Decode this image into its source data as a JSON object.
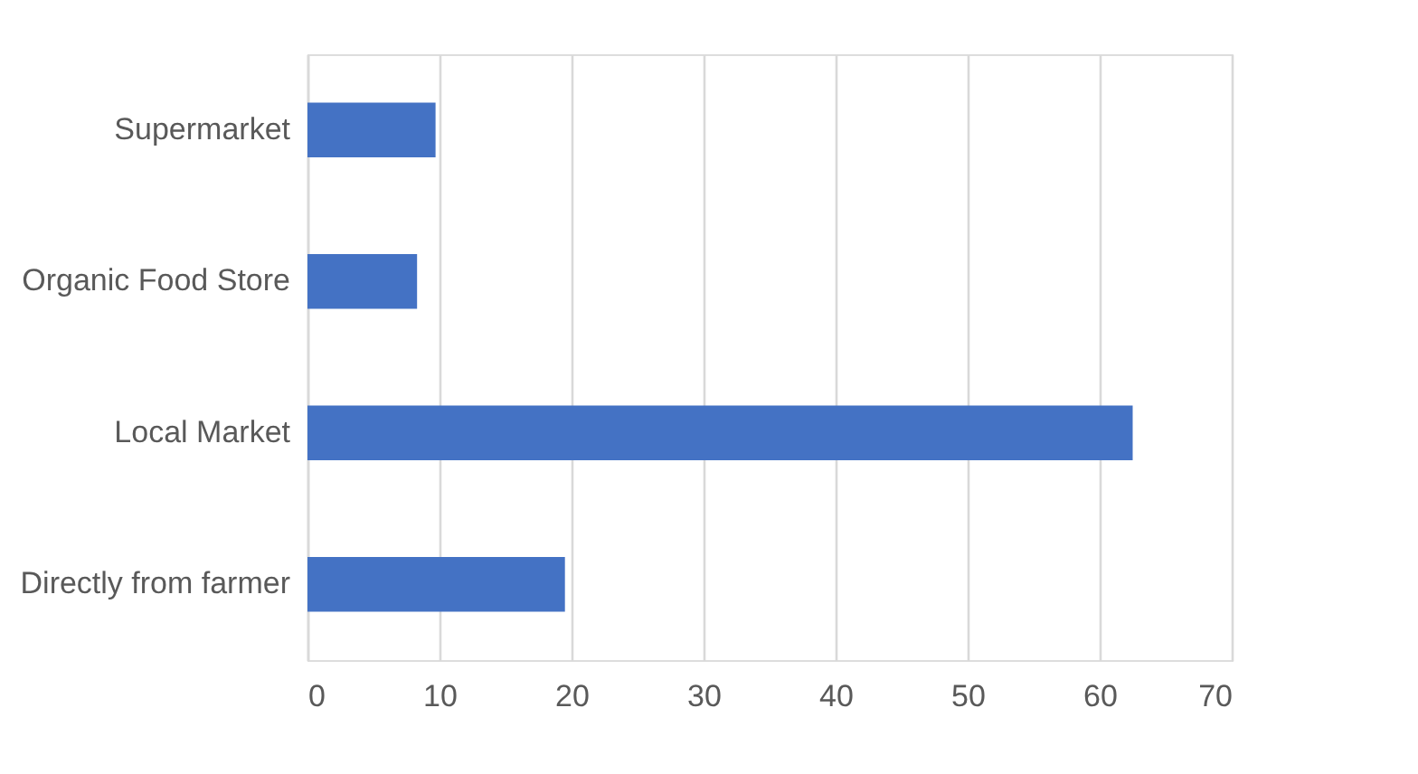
{
  "chart_data": {
    "type": "bar",
    "orientation": "horizontal",
    "categories": [
      "Supermarket",
      "Organic Food Store",
      "Local Market",
      "Directly from farmer"
    ],
    "values": [
      9.7,
      8.3,
      62.5,
      19.5
    ],
    "color": "#4472c4",
    "xlim": [
      0,
      70
    ],
    "xticks": [
      0,
      10,
      20,
      30,
      40,
      50,
      60,
      70
    ],
    "grid": "x"
  }
}
